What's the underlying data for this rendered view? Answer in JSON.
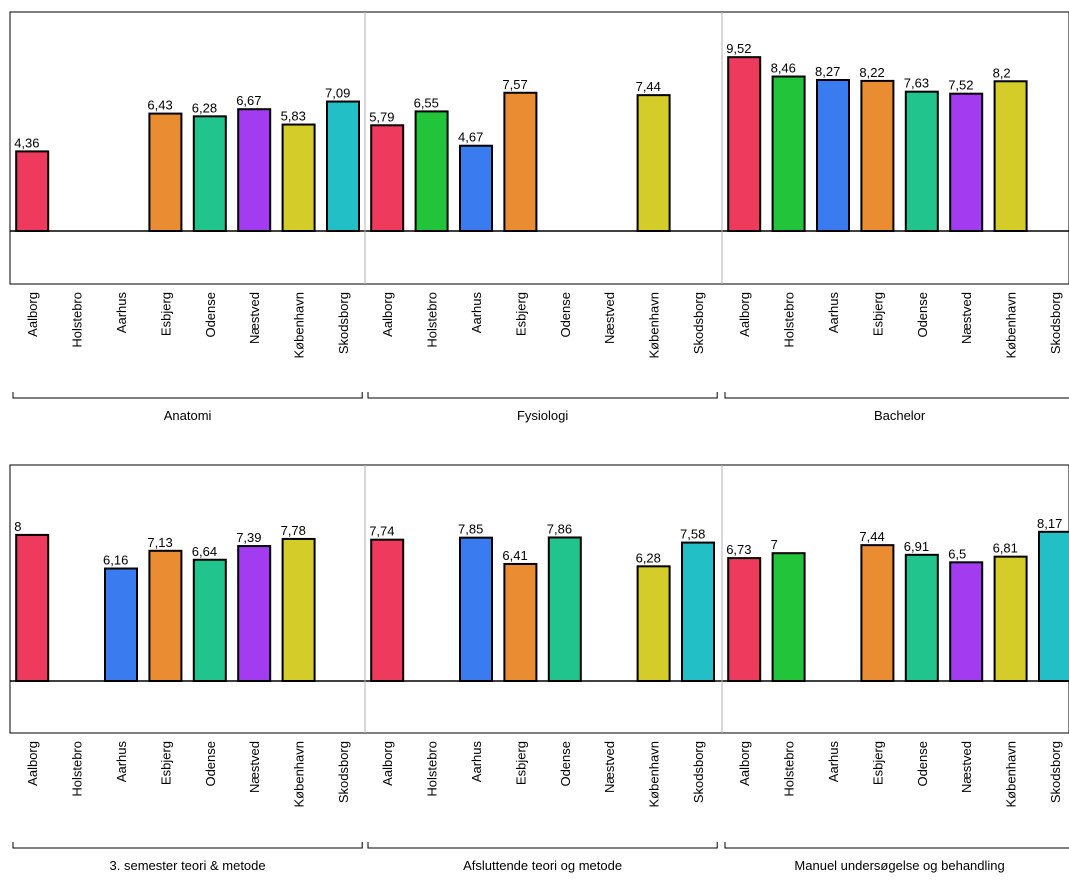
{
  "chart_data": [
    {
      "type": "bar",
      "row": 1,
      "categories": [
        "Aalborg",
        "Holstebro",
        "Aarhus",
        "Esbjerg",
        "Odense",
        "Næstved",
        "København",
        "Skodsborg"
      ],
      "ylim": [
        -4,
        12.5
      ],
      "grid": false,
      "groups": [
        {
          "label": "Anatomi",
          "values": [
            4.36,
            null,
            null,
            6.43,
            6.28,
            6.67,
            5.83,
            7.09
          ],
          "value_labels": [
            "4,36",
            "",
            "",
            "6,43",
            "6,28",
            "6,67",
            "5,83",
            "7,09"
          ]
        },
        {
          "label": "Fysiologi",
          "values": [
            5.79,
            6.55,
            4.67,
            7.57,
            null,
            null,
            7.44,
            null
          ],
          "value_labels": [
            "5,79",
            "6,55",
            "4,67",
            "7,57",
            "",
            "",
            "7,44",
            ""
          ]
        },
        {
          "label": "Bachelor",
          "values": [
            9.52,
            8.46,
            8.27,
            8.22,
            7.63,
            7.52,
            8.2,
            null
          ],
          "value_labels": [
            "9,52",
            "8,46",
            "8,27",
            "8,22",
            "7,63",
            "7,52",
            "8,2",
            ""
          ]
        }
      ]
    },
    {
      "type": "bar",
      "row": 2,
      "categories": [
        "Aalborg",
        "Holstebro",
        "Aarhus",
        "Esbjerg",
        "Odense",
        "Næstved",
        "København",
        "Skodsborg"
      ],
      "ylim": [
        -4,
        12.5
      ],
      "grid": false,
      "groups": [
        {
          "label": "3. semester teori & metode",
          "values": [
            8,
            null,
            6.16,
            7.13,
            6.64,
            7.39,
            7.78,
            null
          ],
          "value_labels": [
            "8",
            "",
            "6,16",
            "7,13",
            "6,64",
            "7,39",
            "7,78",
            ""
          ]
        },
        {
          "label": "Afsluttende teori og metode",
          "values": [
            7.74,
            null,
            7.85,
            6.41,
            7.86,
            null,
            6.28,
            7.58
          ],
          "value_labels": [
            "7,74",
            "",
            "7,85",
            "6,41",
            "7,86",
            "",
            "6,28",
            "7,58"
          ]
        },
        {
          "label": "Manuel undersøgelse og behandling",
          "values": [
            6.73,
            7,
            null,
            7.44,
            6.91,
            6.5,
            6.81,
            8.17
          ],
          "value_labels": [
            "6,73",
            "7",
            "",
            "7,44",
            "6,91",
            "6,5",
            "6,81",
            "8,17"
          ]
        }
      ]
    }
  ],
  "colors": {
    "Aalborg": "#ee3a5c",
    "Holstebro": "#22c43a",
    "Aarhus": "#3a7cf0",
    "Esbjerg": "#e98c32",
    "Odense": "#22c48e",
    "Næstved": "#a33cf0",
    "København": "#d4cc28",
    "Skodsborg": "#22c0c6",
    "axis": "#000000",
    "divider": "#b0b0b0"
  }
}
